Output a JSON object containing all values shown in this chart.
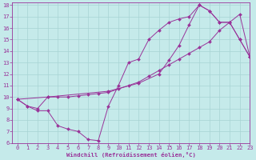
{
  "xlabel": "Windchill (Refroidissement éolien,°C)",
  "xlim": [
    -0.5,
    23
  ],
  "ylim": [
    6,
    18.2
  ],
  "xticks": [
    0,
    1,
    2,
    3,
    4,
    5,
    6,
    7,
    8,
    9,
    10,
    11,
    12,
    13,
    14,
    15,
    16,
    17,
    18,
    19,
    20,
    21,
    22,
    23
  ],
  "yticks": [
    6,
    7,
    8,
    9,
    10,
    11,
    12,
    13,
    14,
    15,
    16,
    17,
    18
  ],
  "bg_color": "#c5eaea",
  "grid_color": "#a8d4d4",
  "line_color": "#993399",
  "line1_x": [
    0,
    1,
    2,
    3,
    4,
    5,
    6,
    7,
    8,
    9,
    10,
    11,
    12,
    13,
    14,
    15,
    16,
    17,
    18,
    19,
    20,
    21,
    22,
    23
  ],
  "line1_y": [
    9.8,
    9.2,
    8.8,
    8.8,
    7.5,
    7.2,
    7.0,
    6.3,
    6.2,
    9.2,
    11.0,
    13.0,
    13.3,
    15.0,
    15.8,
    16.5,
    16.8,
    17.0,
    18.0,
    17.5,
    16.5,
    16.5,
    15.0,
    13.5
  ],
  "line2_x": [
    0,
    1,
    2,
    3,
    4,
    5,
    6,
    7,
    8,
    9,
    10,
    11,
    12,
    13,
    14,
    15,
    16,
    17,
    18,
    19,
    20,
    21,
    22,
    23
  ],
  "line2_y": [
    9.8,
    9.2,
    9.0,
    10.0,
    10.0,
    10.0,
    10.1,
    10.2,
    10.3,
    10.4,
    10.7,
    11.0,
    11.3,
    11.8,
    12.3,
    12.8,
    13.3,
    13.8,
    14.3,
    14.8,
    15.8,
    16.5,
    17.2,
    13.5
  ],
  "line3_x": [
    0,
    3,
    9,
    12,
    14,
    15,
    16,
    17,
    18,
    19,
    20,
    21,
    22,
    23
  ],
  "line3_y": [
    9.8,
    10.0,
    10.5,
    11.2,
    12.0,
    13.2,
    14.5,
    16.3,
    18.0,
    17.5,
    16.5,
    16.5,
    15.0,
    13.5
  ]
}
